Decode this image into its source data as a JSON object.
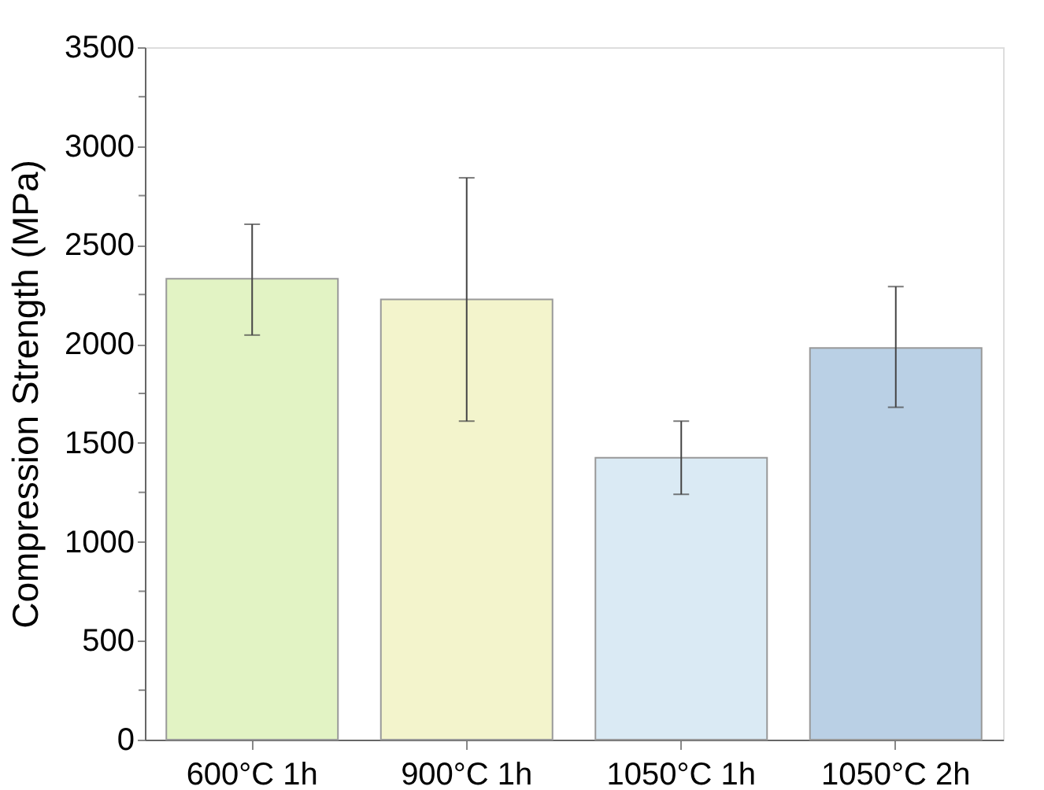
{
  "chart_data": {
    "type": "bar",
    "ylabel": "Compression Strength (MPa)",
    "categories": [
      "600°C 1h",
      "900°C 1h",
      "1050°C 1h",
      "1050°C 2h"
    ],
    "values": [
      2330,
      2225,
      1425,
      1980
    ],
    "colors": [
      "#e2f3c4",
      "#f3f4cc",
      "#daeaf4",
      "#bad0e5"
    ],
    "errors": [
      [
        2045,
        2605
      ],
      [
        1610,
        2840
      ],
      [
        1240,
        1610
      ],
      [
        1680,
        2290
      ]
    ],
    "ylim": [
      0,
      3500
    ],
    "yticks": [
      0,
      {
        "value": 250,
        "label": null
      },
      500,
      {
        "value": 750,
        "label": null
      },
      1000,
      {
        "value": 1250,
        "label": null
      },
      1500,
      {
        "value": 1750,
        "label": null
      },
      2000,
      {
        "value": 2250,
        "label": null
      },
      2500,
      {
        "value": 2750,
        "label": null
      },
      3000,
      {
        "value": 3250,
        "label": null
      },
      3500
    ],
    "grid": false
  }
}
